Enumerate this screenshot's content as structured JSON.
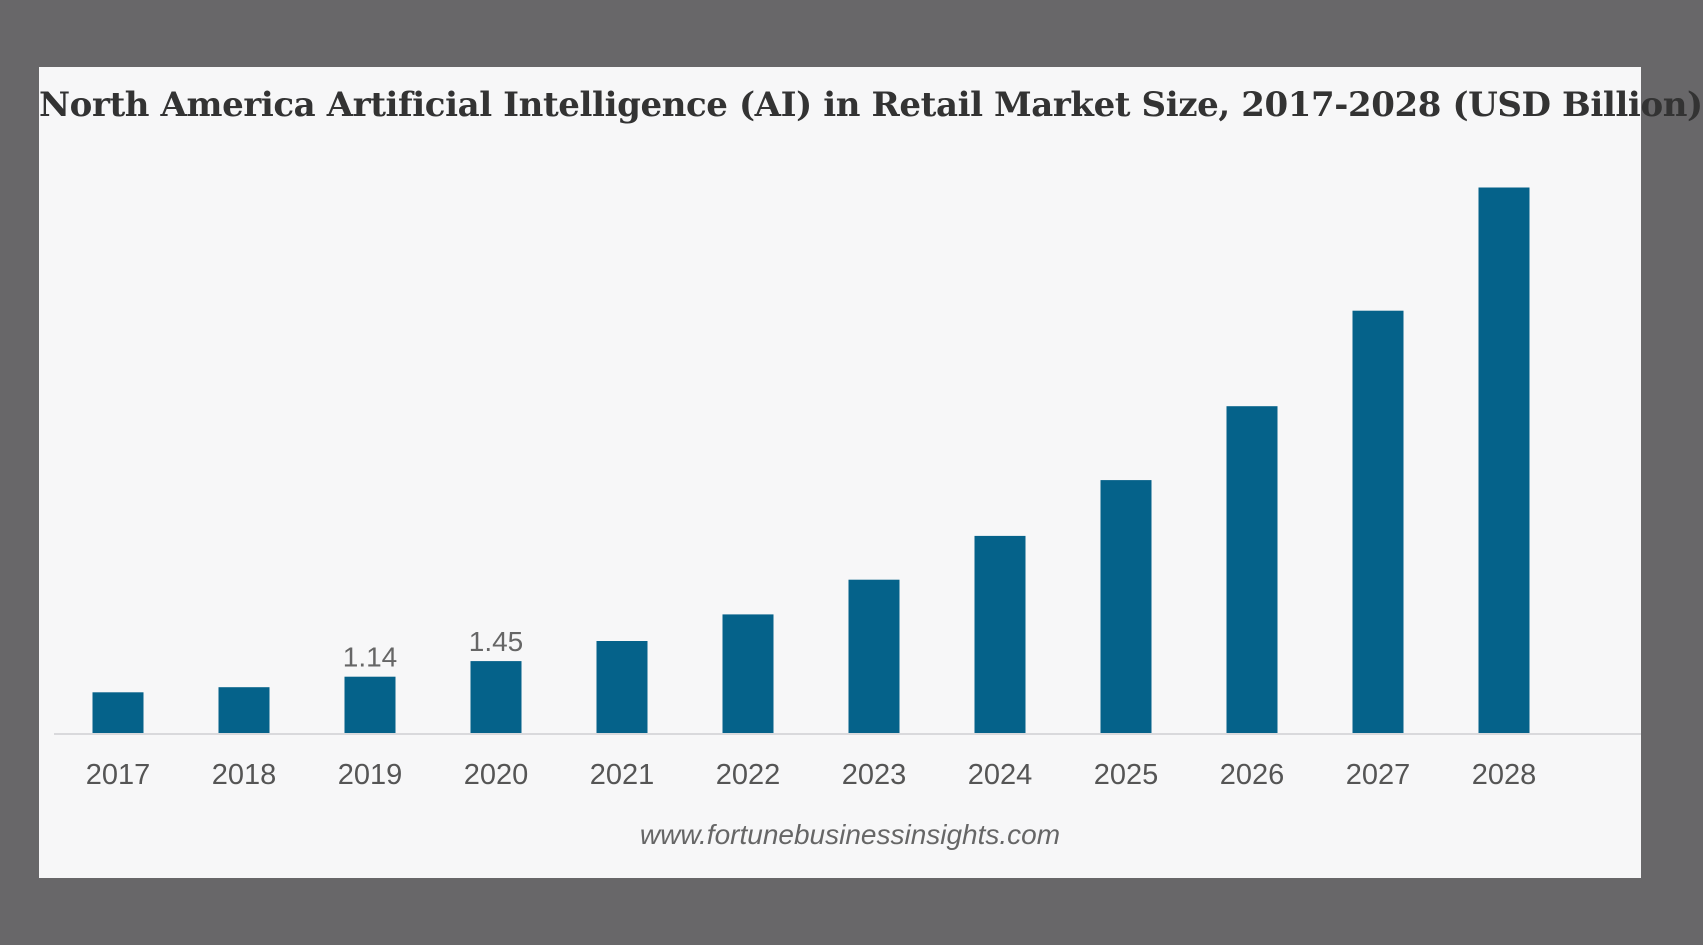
{
  "colors": {
    "page_background": "#686769",
    "card_background": "#f7f7f8",
    "bar": "#05628a",
    "axis_line": "#d9d9dc",
    "tick_label": "#555555",
    "data_label": "#666666",
    "title": "#333333"
  },
  "chart_data": {
    "type": "bar",
    "title": "North America Artificial Intelligence (AI) in Retail Market Size, 2017-2028 (USD Billion)",
    "xlabel": "",
    "ylabel": "",
    "categories": [
      "2017",
      "2018",
      "2019",
      "2020",
      "2021",
      "2022",
      "2023",
      "2024",
      "2025",
      "2026",
      "2027",
      "2028"
    ],
    "series": [
      {
        "values": [
          0.83,
          0.93,
          1.14,
          1.45,
          1.85,
          2.38,
          3.07,
          3.94,
          5.05,
          6.52,
          8.42,
          10.87
        ]
      }
    ],
    "data_labels": [
      "",
      "",
      "1.14",
      "1.45",
      "",
      "",
      "",
      "",
      "",
      "",
      "",
      ""
    ],
    "ylim": [
      0,
      11
    ],
    "y_axis_visible": false,
    "grid": false,
    "legend": "none"
  },
  "source_text": "www.fortunebusinessinsights.com"
}
